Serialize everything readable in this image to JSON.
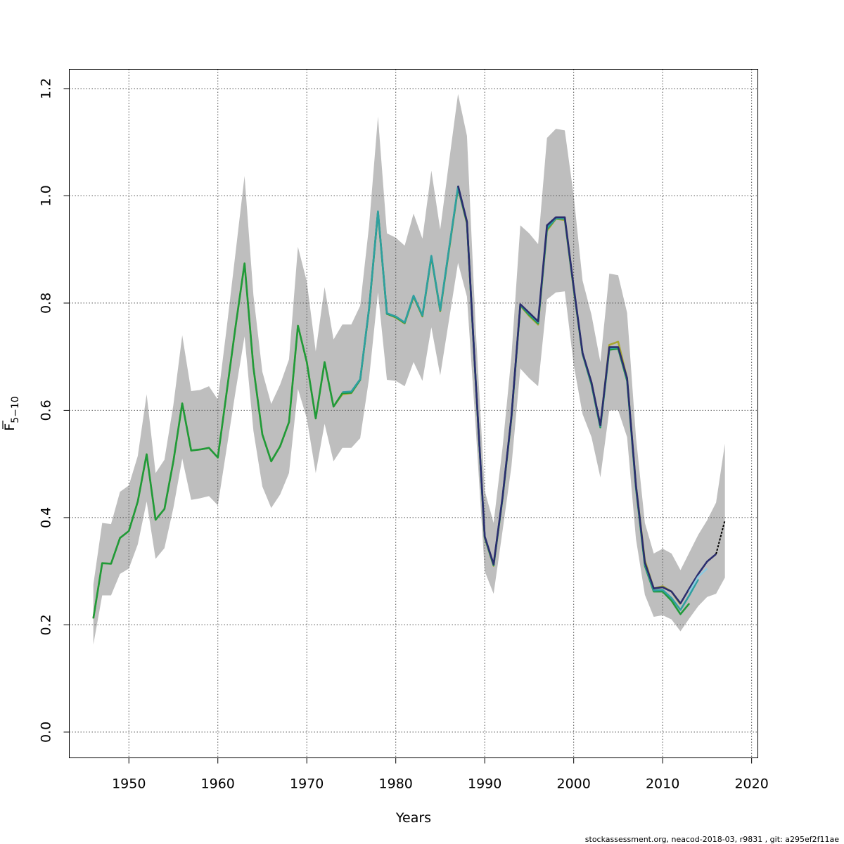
{
  "chart_data": {
    "type": "line",
    "xlabel": "Years",
    "ylabel_main": "F",
    "ylabel_sub": "5−10",
    "xlim": [
      1943.3,
      2020.7
    ],
    "ylim": [
      -0.048,
      1.236
    ],
    "x_ticks": [
      1950,
      1960,
      1970,
      1980,
      1990,
      2000,
      2010,
      2020
    ],
    "x_tick_labels": [
      "1950",
      "1960",
      "1970",
      "1980",
      "1990",
      "2000",
      "2010",
      "2020"
    ],
    "y_ticks": [
      0.0,
      0.2,
      0.4,
      0.6,
      0.8,
      1.0,
      1.2
    ],
    "y_tick_labels": [
      "0.0",
      "0.2",
      "0.4",
      "0.6",
      "0.8",
      "1.0",
      "1.2"
    ],
    "grid": true,
    "footer": "stockassessment.org, neacod-2018-03, r9831 , git: a295ef2f11ae",
    "colors": {
      "band": "#bebebe",
      "grid": "#555555",
      "olive": "#a8a630",
      "green": "#1f9a3a",
      "teal": "#2e9fa0",
      "navy": "#2b2d6e",
      "lightblue": "#8ecae0",
      "forecast": "#000000"
    },
    "years": [
      1946,
      1947,
      1948,
      1949,
      1950,
      1951,
      1952,
      1953,
      1954,
      1955,
      1956,
      1957,
      1958,
      1959,
      1960,
      1961,
      1962,
      1963,
      1964,
      1965,
      1966,
      1967,
      1968,
      1969,
      1970,
      1971,
      1972,
      1973,
      1974,
      1975,
      1976,
      1977,
      1978,
      1979,
      1980,
      1981,
      1982,
      1983,
      1984,
      1985,
      1986,
      1987,
      1988,
      1989,
      1990,
      1991,
      1992,
      1993,
      1994,
      1995,
      1996,
      1997,
      1998,
      1999,
      2000,
      2001,
      2002,
      2003,
      2004,
      2005,
      2006,
      2007,
      2008,
      2009,
      2010,
      2011,
      2012,
      2013,
      2014,
      2015,
      2016,
      2017
    ],
    "band_upper": [
      0.275,
      0.39,
      0.388,
      0.448,
      0.46,
      0.515,
      0.63,
      0.483,
      0.508,
      0.61,
      0.74,
      0.636,
      0.638,
      0.645,
      0.62,
      0.755,
      0.895,
      1.037,
      0.815,
      0.672,
      0.612,
      0.648,
      0.695,
      0.905,
      0.84,
      0.71,
      0.83,
      0.732,
      0.76,
      0.76,
      0.795,
      0.945,
      1.148,
      0.93,
      0.922,
      0.907,
      0.967,
      0.92,
      1.047,
      0.937,
      1.065,
      1.19,
      1.112,
      0.75,
      0.45,
      0.39,
      0.53,
      0.7,
      0.945,
      0.93,
      0.91,
      1.108,
      1.125,
      1.122,
      1.0,
      0.842,
      0.778,
      0.69,
      0.855,
      0.852,
      0.782,
      0.55,
      0.39,
      0.333,
      0.342,
      0.333,
      0.302,
      0.335,
      0.368,
      0.395,
      0.428,
      0.538
    ],
    "band_lower": [
      0.163,
      0.255,
      0.255,
      0.295,
      0.305,
      0.35,
      0.43,
      0.323,
      0.343,
      0.418,
      0.51,
      0.433,
      0.436,
      0.44,
      0.423,
      0.53,
      0.636,
      0.738,
      0.562,
      0.458,
      0.418,
      0.443,
      0.483,
      0.64,
      0.585,
      0.483,
      0.575,
      0.505,
      0.53,
      0.53,
      0.548,
      0.66,
      0.82,
      0.657,
      0.655,
      0.645,
      0.69,
      0.655,
      0.755,
      0.665,
      0.77,
      0.875,
      0.812,
      0.565,
      0.3,
      0.258,
      0.375,
      0.495,
      0.678,
      0.66,
      0.645,
      0.807,
      0.82,
      0.822,
      0.685,
      0.593,
      0.55,
      0.475,
      0.6,
      0.6,
      0.55,
      0.36,
      0.256,
      0.215,
      0.218,
      0.21,
      0.188,
      0.212,
      0.235,
      0.252,
      0.258,
      0.288
    ],
    "series": [
      {
        "color_key": "olive",
        "x": [
          1946,
          1947,
          1948,
          1949,
          1950,
          1951,
          1952,
          1953,
          1954,
          1955,
          1956,
          1957,
          1958,
          1959,
          1960,
          1961,
          1962,
          1963,
          1964,
          1965,
          1966,
          1967,
          1968,
          1969,
          1970,
          1971,
          1972,
          1973,
          1974,
          1975,
          1976,
          1977,
          1978,
          1979,
          1980,
          1981,
          1982,
          1983,
          1984,
          1985,
          1986,
          1987,
          1988,
          1989,
          1990,
          1991,
          1992,
          1993,
          1994,
          1995,
          1996,
          1997,
          1998,
          1999,
          2000,
          2001,
          2002,
          2003,
          2004,
          2005,
          2006,
          2007,
          2008,
          2009,
          2010,
          2011,
          2012
        ],
        "values": [
          0.212,
          0.315,
          0.314,
          0.362,
          0.375,
          0.43,
          0.518,
          0.396,
          0.416,
          0.505,
          0.613,
          0.525,
          0.527,
          0.53,
          0.512,
          0.635,
          0.757,
          0.874,
          0.68,
          0.555,
          0.505,
          0.533,
          0.578,
          0.758,
          0.69,
          0.585,
          0.69,
          0.607,
          0.63,
          0.632,
          0.657,
          0.79,
          0.97,
          0.78,
          0.773,
          0.762,
          0.812,
          0.775,
          0.886,
          0.785,
          0.9,
          1.015,
          0.948,
          0.65,
          0.362,
          0.31,
          0.435,
          0.585,
          0.795,
          0.776,
          0.76,
          0.935,
          0.957,
          0.955,
          0.825,
          0.705,
          0.652,
          0.57,
          0.722,
          0.728,
          0.66,
          0.46,
          0.32,
          0.268,
          0.272,
          0.262,
          0.238
        ]
      },
      {
        "color_key": "green",
        "x": [
          1946,
          1947,
          1948,
          1949,
          1950,
          1951,
          1952,
          1953,
          1954,
          1955,
          1956,
          1957,
          1958,
          1959,
          1960,
          1961,
          1962,
          1963,
          1964,
          1965,
          1966,
          1967,
          1968,
          1969,
          1970,
          1971,
          1972,
          1973,
          1974,
          1975,
          1976,
          1977,
          1978,
          1979,
          1980,
          1981,
          1982,
          1983,
          1984,
          1985,
          1986,
          1987,
          1988,
          1989,
          1990,
          1991,
          1992,
          1993,
          1994,
          1995,
          1996,
          1997,
          1998,
          1999,
          2000,
          2001,
          2002,
          2003,
          2004,
          2005,
          2006,
          2007,
          2008,
          2009,
          2010,
          2011,
          2012,
          2013
        ],
        "values": [
          0.212,
          0.315,
          0.314,
          0.362,
          0.375,
          0.43,
          0.518,
          0.396,
          0.416,
          0.505,
          0.613,
          0.525,
          0.527,
          0.53,
          0.512,
          0.635,
          0.757,
          0.874,
          0.68,
          0.555,
          0.505,
          0.533,
          0.578,
          0.758,
          0.69,
          0.585,
          0.69,
          0.607,
          0.632,
          0.633,
          0.657,
          0.79,
          0.97,
          0.78,
          0.774,
          0.763,
          0.813,
          0.776,
          0.887,
          0.786,
          0.902,
          1.015,
          0.95,
          0.65,
          0.363,
          0.311,
          0.436,
          0.586,
          0.796,
          0.778,
          0.762,
          0.938,
          0.958,
          0.957,
          0.827,
          0.705,
          0.648,
          0.568,
          0.713,
          0.715,
          0.655,
          0.455,
          0.31,
          0.262,
          0.262,
          0.245,
          0.22,
          0.24
        ]
      },
      {
        "color_key": "teal",
        "x": [
          1974,
          1975,
          1976,
          1977,
          1978,
          1979,
          1980,
          1981,
          1982,
          1983,
          1984,
          1985,
          1986,
          1987,
          1988,
          1989,
          1990,
          1991,
          1992,
          1993,
          1994,
          1995,
          1996,
          1997,
          1998,
          1999,
          2000,
          2001,
          2002,
          2003,
          2004,
          2005,
          2006,
          2007,
          2008,
          2009,
          2010,
          2011,
          2012,
          2013,
          2014
        ],
        "values": [
          0.634,
          0.635,
          0.658,
          0.791,
          0.971,
          0.781,
          0.775,
          0.764,
          0.814,
          0.777,
          0.888,
          0.787,
          0.903,
          1.017,
          0.951,
          0.651,
          0.364,
          0.312,
          0.437,
          0.587,
          0.797,
          0.78,
          0.764,
          0.94,
          0.958,
          0.958,
          0.828,
          0.706,
          0.65,
          0.57,
          0.716,
          0.717,
          0.658,
          0.458,
          0.313,
          0.264,
          0.265,
          0.25,
          0.228,
          0.255,
          0.285
        ]
      },
      {
        "color_key": "navy",
        "x": [
          1987,
          1988,
          1989,
          1990,
          1991,
          1992,
          1993,
          1994,
          1995,
          1996,
          1997,
          1998,
          1999,
          2000,
          2001,
          2002,
          2003,
          2004,
          2005,
          2006,
          2007,
          2008,
          2009,
          2010,
          2011,
          2012,
          2013,
          2014,
          2015,
          2016
        ],
        "values": [
          1.019,
          0.952,
          0.652,
          0.365,
          0.313,
          0.438,
          0.588,
          0.798,
          0.782,
          0.766,
          0.945,
          0.96,
          0.96,
          0.83,
          0.707,
          0.652,
          0.572,
          0.718,
          0.718,
          0.66,
          0.46,
          0.316,
          0.268,
          0.27,
          0.262,
          0.24,
          0.268,
          0.295,
          0.318,
          0.332
        ]
      },
      {
        "color_key": "lightblue",
        "x": [
          2013,
          2014,
          2015
        ],
        "values": [
          0.262,
          0.29,
          0.305
        ]
      },
      {
        "color_key": "forecast",
        "dashed": true,
        "x": [
          2016,
          2017
        ],
        "values": [
          0.332,
          0.395
        ]
      }
    ]
  }
}
